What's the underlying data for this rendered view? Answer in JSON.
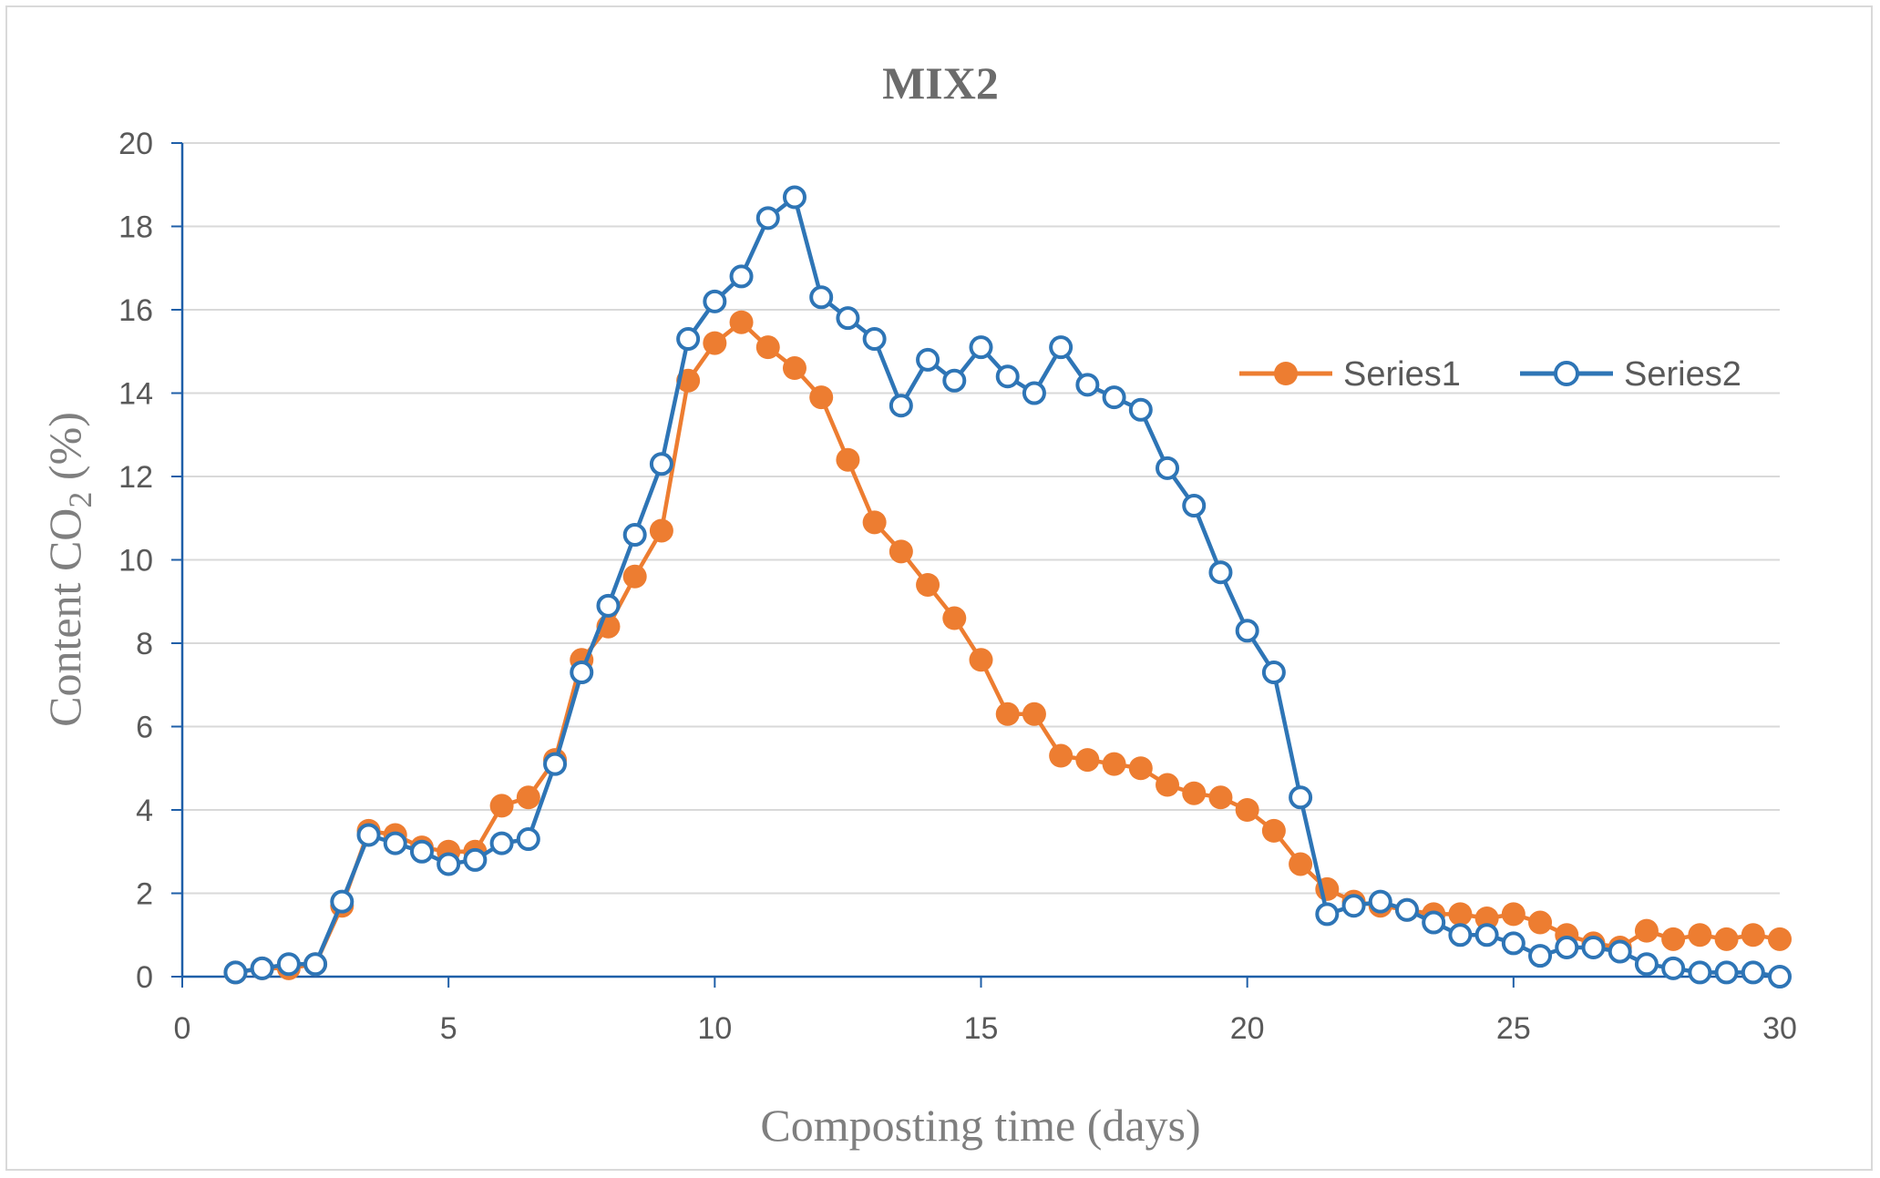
{
  "chart_data": {
    "type": "line",
    "title": "MIX2",
    "xlabel": "Composting time (days)",
    "ylabel_main": "Content CO",
    "ylabel_sub": "2",
    "ylabel_tail": " (%)",
    "xlim": [
      0,
      30
    ],
    "ylim": [
      0,
      20
    ],
    "x_ticks": [
      0,
      5,
      10,
      15,
      20,
      25,
      30
    ],
    "y_ticks": [
      0,
      2,
      4,
      6,
      8,
      10,
      12,
      14,
      16,
      18,
      20
    ],
    "grid": "horizontal",
    "legend_position": "right",
    "x": [
      1,
      1.5,
      2,
      2.5,
      3,
      3.5,
      4,
      4.5,
      5,
      5.5,
      6,
      6.5,
      7,
      7.5,
      8,
      8.5,
      9,
      9.5,
      10,
      10.5,
      11,
      11.5,
      12,
      12.5,
      13,
      13.5,
      14,
      14.5,
      15,
      15.5,
      16,
      16.5,
      17,
      17.5,
      18,
      18.5,
      19,
      19.5,
      20,
      20.5,
      21,
      21.5,
      22,
      22.5,
      23,
      23.5,
      24,
      24.5,
      25,
      25.5,
      26,
      26.5,
      27,
      27.5,
      28,
      28.5,
      29,
      29.5,
      30
    ],
    "series": [
      {
        "name": "Series1",
        "color": "#ed7d31",
        "marker": "filled-circle",
        "values": [
          0.1,
          0.2,
          0.2,
          0.3,
          1.7,
          3.5,
          3.4,
          3.1,
          3.0,
          3.0,
          4.1,
          4.3,
          5.2,
          7.6,
          8.4,
          9.6,
          10.7,
          14.3,
          15.2,
          15.7,
          15.1,
          14.6,
          13.9,
          12.4,
          10.9,
          10.2,
          9.4,
          8.6,
          7.6,
          6.3,
          6.3,
          5.3,
          5.2,
          5.1,
          5.0,
          4.6,
          4.4,
          4.3,
          4.0,
          3.5,
          2.7,
          2.1,
          1.8,
          1.7,
          1.6,
          1.5,
          1.5,
          1.4,
          1.5,
          1.3,
          1.0,
          0.8,
          0.7,
          1.1,
          0.9,
          1.0,
          0.9,
          1.0,
          0.9
        ]
      },
      {
        "name": "Series2",
        "color": "#2e75b6",
        "marker": "open-circle",
        "values": [
          0.1,
          0.2,
          0.3,
          0.3,
          1.8,
          3.4,
          3.2,
          3.0,
          2.7,
          2.8,
          3.2,
          3.3,
          5.1,
          7.3,
          8.9,
          10.6,
          12.3,
          15.3,
          16.2,
          16.8,
          18.2,
          18.7,
          16.3,
          15.8,
          15.3,
          13.7,
          14.8,
          14.3,
          15.1,
          14.4,
          14.0,
          15.1,
          14.2,
          13.9,
          13.6,
          12.2,
          11.3,
          9.7,
          8.3,
          7.3,
          4.3,
          1.5,
          1.7,
          1.8,
          1.6,
          1.3,
          1.0,
          1.0,
          0.8,
          0.5,
          0.7,
          0.7,
          0.6,
          0.3,
          0.2,
          0.1,
          0.1,
          0.1,
          0.0
        ]
      }
    ]
  }
}
